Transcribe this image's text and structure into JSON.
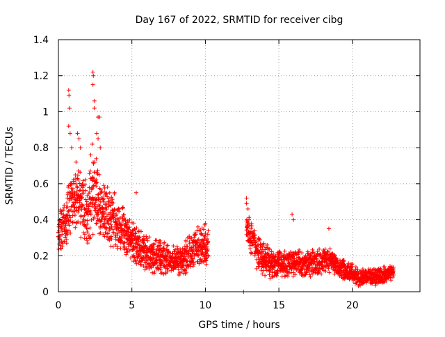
{
  "chart_data": {
    "type": "scatter",
    "title": "Day 167 of 2022, SRMTID for receiver cibg",
    "xlabel": "GPS time / hours",
    "ylabel": "SRMTID / TECUs",
    "xlim": [
      0,
      24.6
    ],
    "ylim": [
      0,
      1.4
    ],
    "xticks": [
      0,
      5,
      10,
      15,
      20
    ],
    "xtick_labels": [
      "0",
      "5",
      "10",
      "15",
      "20"
    ],
    "yticks": [
      0,
      0.2,
      0.4,
      0.6,
      0.8,
      1.0,
      1.2,
      1.4
    ],
    "ytick_labels": [
      "0",
      "0.2",
      "0.4",
      "0.6",
      "0.8",
      "1",
      "1.2",
      "1.4"
    ],
    "grid": true,
    "marker": "+",
    "series": [
      {
        "name": "SRMTID",
        "color": "#ff0000",
        "trend": [
          [
            0.0,
            0.32
          ],
          [
            0.5,
            0.38
          ],
          [
            1.0,
            0.55
          ],
          [
            1.5,
            0.5
          ],
          [
            2.0,
            0.45
          ],
          [
            2.5,
            0.55
          ],
          [
            3.0,
            0.45
          ],
          [
            3.5,
            0.4
          ],
          [
            4.0,
            0.38
          ],
          [
            4.5,
            0.32
          ],
          [
            5.0,
            0.28
          ],
          [
            5.5,
            0.25
          ],
          [
            6.0,
            0.22
          ],
          [
            6.5,
            0.2
          ],
          [
            7.0,
            0.19
          ],
          [
            7.5,
            0.18
          ],
          [
            8.0,
            0.18
          ],
          [
            8.5,
            0.18
          ],
          [
            9.0,
            0.22
          ],
          [
            9.5,
            0.25
          ],
          [
            10.0,
            0.26
          ],
          [
            10.2,
            0.25
          ],
          [
            12.8,
            0.35
          ],
          [
            13.0,
            0.3
          ],
          [
            13.5,
            0.22
          ],
          [
            14.0,
            0.18
          ],
          [
            14.5,
            0.16
          ],
          [
            15.0,
            0.15
          ],
          [
            15.5,
            0.15
          ],
          [
            16.0,
            0.16
          ],
          [
            16.5,
            0.16
          ],
          [
            17.0,
            0.15
          ],
          [
            17.5,
            0.16
          ],
          [
            18.0,
            0.17
          ],
          [
            18.5,
            0.18
          ],
          [
            19.0,
            0.14
          ],
          [
            19.5,
            0.12
          ],
          [
            20.0,
            0.1
          ],
          [
            20.5,
            0.08
          ],
          [
            21.0,
            0.08
          ],
          [
            21.5,
            0.08
          ],
          [
            22.0,
            0.09
          ],
          [
            22.5,
            0.1
          ],
          [
            22.8,
            0.11
          ]
        ],
        "spread": [
          [
            0.0,
            0.08
          ],
          [
            1.0,
            0.12
          ],
          [
            2.0,
            0.15
          ],
          [
            3.0,
            0.12
          ],
          [
            4.0,
            0.1
          ],
          [
            5.0,
            0.08
          ],
          [
            6.0,
            0.07
          ],
          [
            8.0,
            0.06
          ],
          [
            10.2,
            0.08
          ],
          [
            12.8,
            0.08
          ],
          [
            14.0,
            0.06
          ],
          [
            16.0,
            0.05
          ],
          [
            18.0,
            0.05
          ],
          [
            19.0,
            0.04
          ],
          [
            22.8,
            0.03
          ]
        ],
        "peaks": [
          {
            "x": 0.7,
            "y": 1.12
          },
          {
            "x": 0.72,
            "y": 1.09
          },
          {
            "x": 0.75,
            "y": 1.02
          },
          {
            "x": 0.7,
            "y": 0.92
          },
          {
            "x": 0.8,
            "y": 0.88
          },
          {
            "x": 0.9,
            "y": 0.8
          },
          {
            "x": 1.3,
            "y": 0.88
          },
          {
            "x": 1.4,
            "y": 0.85
          },
          {
            "x": 1.5,
            "y": 0.8
          },
          {
            "x": 1.2,
            "y": 0.72
          },
          {
            "x": 2.35,
            "y": 1.22
          },
          {
            "x": 2.38,
            "y": 1.2
          },
          {
            "x": 2.35,
            "y": 1.15
          },
          {
            "x": 2.45,
            "y": 1.06
          },
          {
            "x": 2.45,
            "y": 1.02
          },
          {
            "x": 2.7,
            "y": 0.97
          },
          {
            "x": 2.8,
            "y": 0.97
          },
          {
            "x": 2.6,
            "y": 0.88
          },
          {
            "x": 2.7,
            "y": 0.85
          },
          {
            "x": 2.85,
            "y": 0.8
          },
          {
            "x": 2.3,
            "y": 0.82
          },
          {
            "x": 2.2,
            "y": 0.76
          },
          {
            "x": 5.3,
            "y": 0.55
          },
          {
            "x": 4.4,
            "y": 0.47
          },
          {
            "x": 12.8,
            "y": 0.52
          },
          {
            "x": 12.8,
            "y": 0.49
          },
          {
            "x": 12.9,
            "y": 0.46
          },
          {
            "x": 15.9,
            "y": 0.43
          },
          {
            "x": 16.0,
            "y": 0.4
          },
          {
            "x": 18.4,
            "y": 0.35
          },
          {
            "x": 10.0,
            "y": 0.38
          },
          {
            "x": 9.5,
            "y": 0.36
          }
        ],
        "outliers": [
          {
            "x": 12.6,
            "y": 0.0
          }
        ]
      }
    ]
  }
}
